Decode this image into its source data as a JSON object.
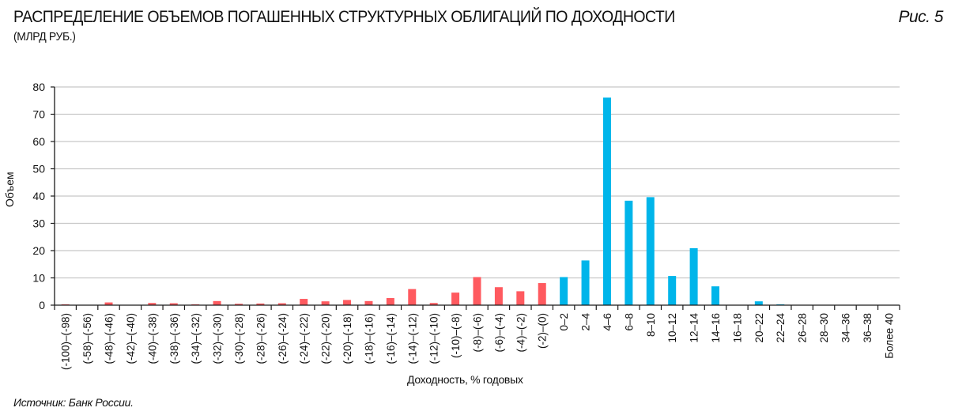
{
  "header": {
    "title": "РАСПРЕДЕЛЕНИЕ ОБЪЕМОВ ПОГАШЕННЫХ СТРУКТУРНЫХ ОБЛИГАЦИЙ ПО ДОХОДНОСТИ",
    "subtitle": "(МЛРД РУБ.)",
    "figure_label": "Рис. 5"
  },
  "footer": {
    "source": "Источник: Банк России."
  },
  "colors": {
    "negative": "#ff5a5f",
    "positive": "#00b5ea",
    "gridline": "#c8c8c8",
    "axis": "#1a1a1a"
  },
  "chart_data": {
    "type": "bar",
    "title": "РАСПРЕДЕЛЕНИЕ ОБЪЕМОВ ПОГАШЕННЫХ СТРУКТУРНЫХ ОБЛИГАЦИЙ ПО ДОХОДНОСТИ",
    "subtitle": "(МЛРД РУБ.)",
    "xlabel": "Доходность, % годовых",
    "ylabel": "Объем",
    "ylim": [
      0,
      80
    ],
    "yticks": [
      0,
      10,
      20,
      30,
      40,
      50,
      60,
      70,
      80
    ],
    "grid": true,
    "legend": null,
    "categories": [
      "(-100)–(-98)",
      "(-58)–(-56)",
      "(-48)–(-46)",
      "(-42)–(-40)",
      "(-40)–(-38)",
      "(-38)–(-36)",
      "(-34)–(-32)",
      "(-32)–(-30)",
      "(-30)–(-28)",
      "(-28)–(-26)",
      "(-26)–(-24)",
      "(-24)–(-22)",
      "(-22)–(-20)",
      "(-20)–(-18)",
      "(-18)–(-16)",
      "(-16)–(-14)",
      "(-14)–(-12)",
      "(-12)–(-10)",
      "(-10)–(-8)",
      "(-8)–(-6)",
      "(-6)–(-4)",
      "(-4)–(-2)",
      "(-2)–(0)",
      "0–2",
      "2–4",
      "4–6",
      "6–8",
      "8–10",
      "10–12",
      "12–14",
      "14–16",
      "16–18",
      "20–22",
      "22–24",
      "26–28",
      "28–30",
      "34–36",
      "36–38",
      "Более 40"
    ],
    "values": [
      0.3,
      0.0,
      1.0,
      0.1,
      0.8,
      0.7,
      0.3,
      1.5,
      0.5,
      0.6,
      0.7,
      2.3,
      1.4,
      1.9,
      1.5,
      2.6,
      5.9,
      0.8,
      4.6,
      10.3,
      6.6,
      5.1,
      8.1,
      10.3,
      16.4,
      76.1,
      38.3,
      39.6,
      10.7,
      20.9,
      6.9,
      0.1,
      1.4,
      0.3,
      0.05,
      0.0,
      0.0,
      0.0,
      0.0
    ],
    "bar_colors_rule": "negative-yield categories red (#ff5a5f), non-negative blue (#00b5ea)",
    "negative_count": 23,
    "source": "Источник: Банк России."
  }
}
